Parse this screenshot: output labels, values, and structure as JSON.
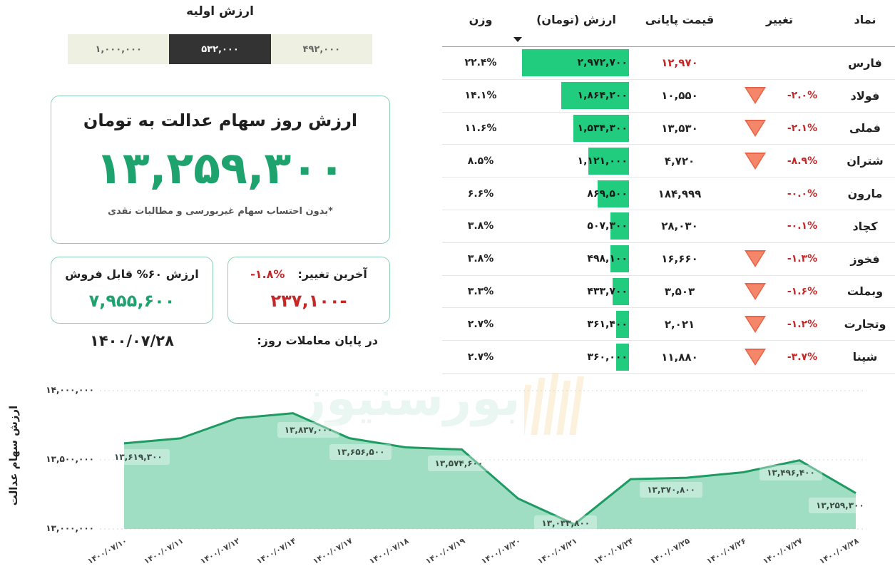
{
  "initial_value": {
    "title": "ارزش اولیه",
    "options": [
      {
        "label": "۱,۰۰۰,۰۰۰",
        "selected": false
      },
      {
        "label": "۵۳۲,۰۰۰",
        "selected": true
      },
      {
        "label": "۴۹۲,۰۰۰",
        "selected": false
      }
    ]
  },
  "main_card": {
    "title": "ارزش روز سهام عدالت به تومان",
    "value": "۱۳,۲۵۹,۳۰۰",
    "note": "*بدون احتساب سهام غیربورسی و مطالبات نقدی"
  },
  "sellable_card": {
    "label": "ارزش ۶۰% قابل فروش",
    "value": "۷,۹۵۵,۶۰۰"
  },
  "change_card": {
    "label": "آخرین تغییر:",
    "percent": "-۱.۸%",
    "value": "-۲۳۷,۱۰۰"
  },
  "end_of_day": {
    "label": "در پایان معاملات روز:",
    "date": "۱۴۰۰/۰۷/۲۸"
  },
  "table": {
    "headers": {
      "symbol": "نماد",
      "change": "تغییر",
      "final_price": "قیمت پایانی",
      "value": "ارزش (تومان)",
      "weight": "وزن"
    },
    "sort_column": "value",
    "sort_icon": "sort-desc-icon",
    "bar_color": "#22cc7f",
    "down_color": "#c62828",
    "rows": [
      {
        "symbol": "فارس",
        "change": "",
        "arrow": false,
        "price": "۱۲,۹۷۰",
        "price_red": true,
        "value": "۲,۹۷۲,۷۰۰",
        "bar_pct": 100,
        "weight": "۲۲.۴%"
      },
      {
        "symbol": "فولاد",
        "change": "-۲.۰%",
        "arrow": true,
        "price": "۱۰,۵۵۰",
        "price_red": false,
        "value": "۱,۸۶۴,۲۰۰",
        "bar_pct": 63,
        "weight": "۱۴.۱%"
      },
      {
        "symbol": "فملی",
        "change": "-۲.۱%",
        "arrow": true,
        "price": "۱۳,۵۳۰",
        "price_red": false,
        "value": "۱,۵۳۴,۳۰۰",
        "bar_pct": 52,
        "weight": "۱۱.۶%"
      },
      {
        "symbol": "شتران",
        "change": "-۸.۹%",
        "arrow": true,
        "price": "۴,۷۲۰",
        "price_red": false,
        "value": "۱,۱۲۱,۰۰۰",
        "bar_pct": 38,
        "weight": "۸.۵%"
      },
      {
        "symbol": "مارون",
        "change": "-۰.۰%",
        "arrow": false,
        "price": "۱۸۴,۹۹۹",
        "price_red": false,
        "value": "۸۶۹,۵۰۰",
        "bar_pct": 29,
        "weight": "۶.۶%"
      },
      {
        "symbol": "کچاد",
        "change": "-۰.۱%",
        "arrow": false,
        "price": "۲۸,۰۳۰",
        "price_red": false,
        "value": "۵۰۷,۳۰۰",
        "bar_pct": 17,
        "weight": "۳.۸%"
      },
      {
        "symbol": "فخوز",
        "change": "-۱.۳%",
        "arrow": true,
        "price": "۱۶,۶۶۰",
        "price_red": false,
        "value": "۴۹۸,۱۰۰",
        "bar_pct": 17,
        "weight": "۳.۸%"
      },
      {
        "symbol": "وبملت",
        "change": "-۱.۶%",
        "arrow": true,
        "price": "۳,۵۰۳",
        "price_red": false,
        "value": "۴۳۳,۷۰۰",
        "bar_pct": 15,
        "weight": "۳.۳%"
      },
      {
        "symbol": "وتجارت",
        "change": "-۱.۲%",
        "arrow": true,
        "price": "۲,۰۲۱",
        "price_red": false,
        "value": "۳۶۱,۴۰۰",
        "bar_pct": 12,
        "weight": "۲.۷%"
      },
      {
        "symbol": "شپنا",
        "change": "-۳.۷%",
        "arrow": true,
        "price": "۱۱,۸۸۰",
        "price_red": false,
        "value": "۳۶۰,۰۰۰",
        "bar_pct": 12,
        "weight": "۲.۷%"
      }
    ]
  },
  "watermark": "بورسنیوز",
  "chart_data": {
    "type": "area",
    "title": "",
    "xlabel": "",
    "ylabel": "ارزش سهام عدالت",
    "ylim": [
      13000000,
      14000000
    ],
    "yticks": [
      13000000,
      13500000,
      14000000
    ],
    "ytick_labels": [
      "۱۳,۰۰۰,۰۰۰",
      "۱۳,۵۰۰,۰۰۰",
      "۱۴,۰۰۰,۰۰۰"
    ],
    "grid": "horizontal-dotted",
    "legend": "none",
    "line_color": "#1e9a62",
    "fill_color": "#9adcbf",
    "categories": [
      "۱۴۰۰/۰۷/۱۰",
      "۱۴۰۰/۰۷/۱۱",
      "۱۴۰۰/۰۷/۱۲",
      "۱۴۰۰/۰۷/۱۴",
      "۱۴۰۰/۰۷/۱۷",
      "۱۴۰۰/۰۷/۱۸",
      "۱۴۰۰/۰۷/۱۹",
      "۱۴۰۰/۰۷/۲۰",
      "۱۴۰۰/۰۷/۲۱",
      "۱۴۰۰/۰۷/۲۴",
      "۱۴۰۰/۰۷/۲۵",
      "۱۴۰۰/۰۷/۲۶",
      "۱۴۰۰/۰۷/۲۷",
      "۱۴۰۰/۰۷/۲۸"
    ],
    "values": [
      13619300,
      13655000,
      13800000,
      13837000,
      13656500,
      13590000,
      13574600,
      13220000,
      13033800,
      13360000,
      13370800,
      13410000,
      13496400,
      13259300
    ],
    "annotations": [
      {
        "index": 0,
        "text": "۱۳,۶۱۹,۳۰۰"
      },
      {
        "index": 3,
        "text": "۱۳,۸۳۷,۰۰۰"
      },
      {
        "index": 4,
        "text": "۱۳,۶۵۶,۵۰۰"
      },
      {
        "index": 6,
        "text": "۱۳,۵۷۴,۶۰۰"
      },
      {
        "index": 8,
        "text": "۱۳,۰۳۳,۸۰۰"
      },
      {
        "index": 10,
        "text": "۱۳,۳۷۰,۸۰۰"
      },
      {
        "index": 12,
        "text": "۱۳,۴۹۶,۴۰۰"
      },
      {
        "index": 13,
        "text": "۱۳,۲۵۹,۳۰۰"
      }
    ]
  }
}
